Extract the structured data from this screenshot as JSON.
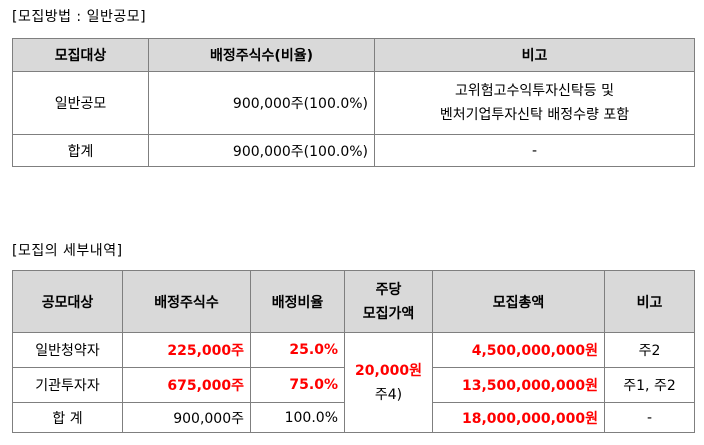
{
  "section1": {
    "title": "[모집방법 : 일반공모]",
    "headers": [
      "모집대상",
      "배정주식수(비율)",
      "비고"
    ],
    "rows": [
      {
        "target": "일반공모",
        "shares": "900,000주(100.0%)",
        "note_line1": "고위험고수익투자신탁등 및",
        "note_line2": "벤처기업투자신탁 배정수량 포함"
      },
      {
        "target": "합계",
        "shares": "900,000주(100.0%)",
        "note": "-"
      }
    ]
  },
  "section2": {
    "title": "[모집의 세부내역]",
    "headers": {
      "target": "공모대상",
      "shares": "배정주식수",
      "ratio": "배정비율",
      "price_line1": "주당",
      "price_line2": "모집가액",
      "total": "모집총액",
      "note": "비고"
    },
    "price_value": "20,000원",
    "price_note": "주4)",
    "rows": [
      {
        "target": "일반청약자",
        "shares": "225,000주",
        "ratio": "25.0%",
        "total": "4,500,000,000원",
        "note": "주2"
      },
      {
        "target": "기관투자자",
        "shares": "675,000주",
        "ratio": "75.0%",
        "total": "13,500,000,000원",
        "note": "주1, 주2"
      },
      {
        "target": "합 계",
        "shares": "900,000주",
        "ratio": "100.0%",
        "total": "18,000,000,000원",
        "note": "-"
      }
    ]
  },
  "colors": {
    "header_bg": "#d9d9d9",
    "highlight": "#ff0000",
    "border": "#7f7f7f"
  }
}
